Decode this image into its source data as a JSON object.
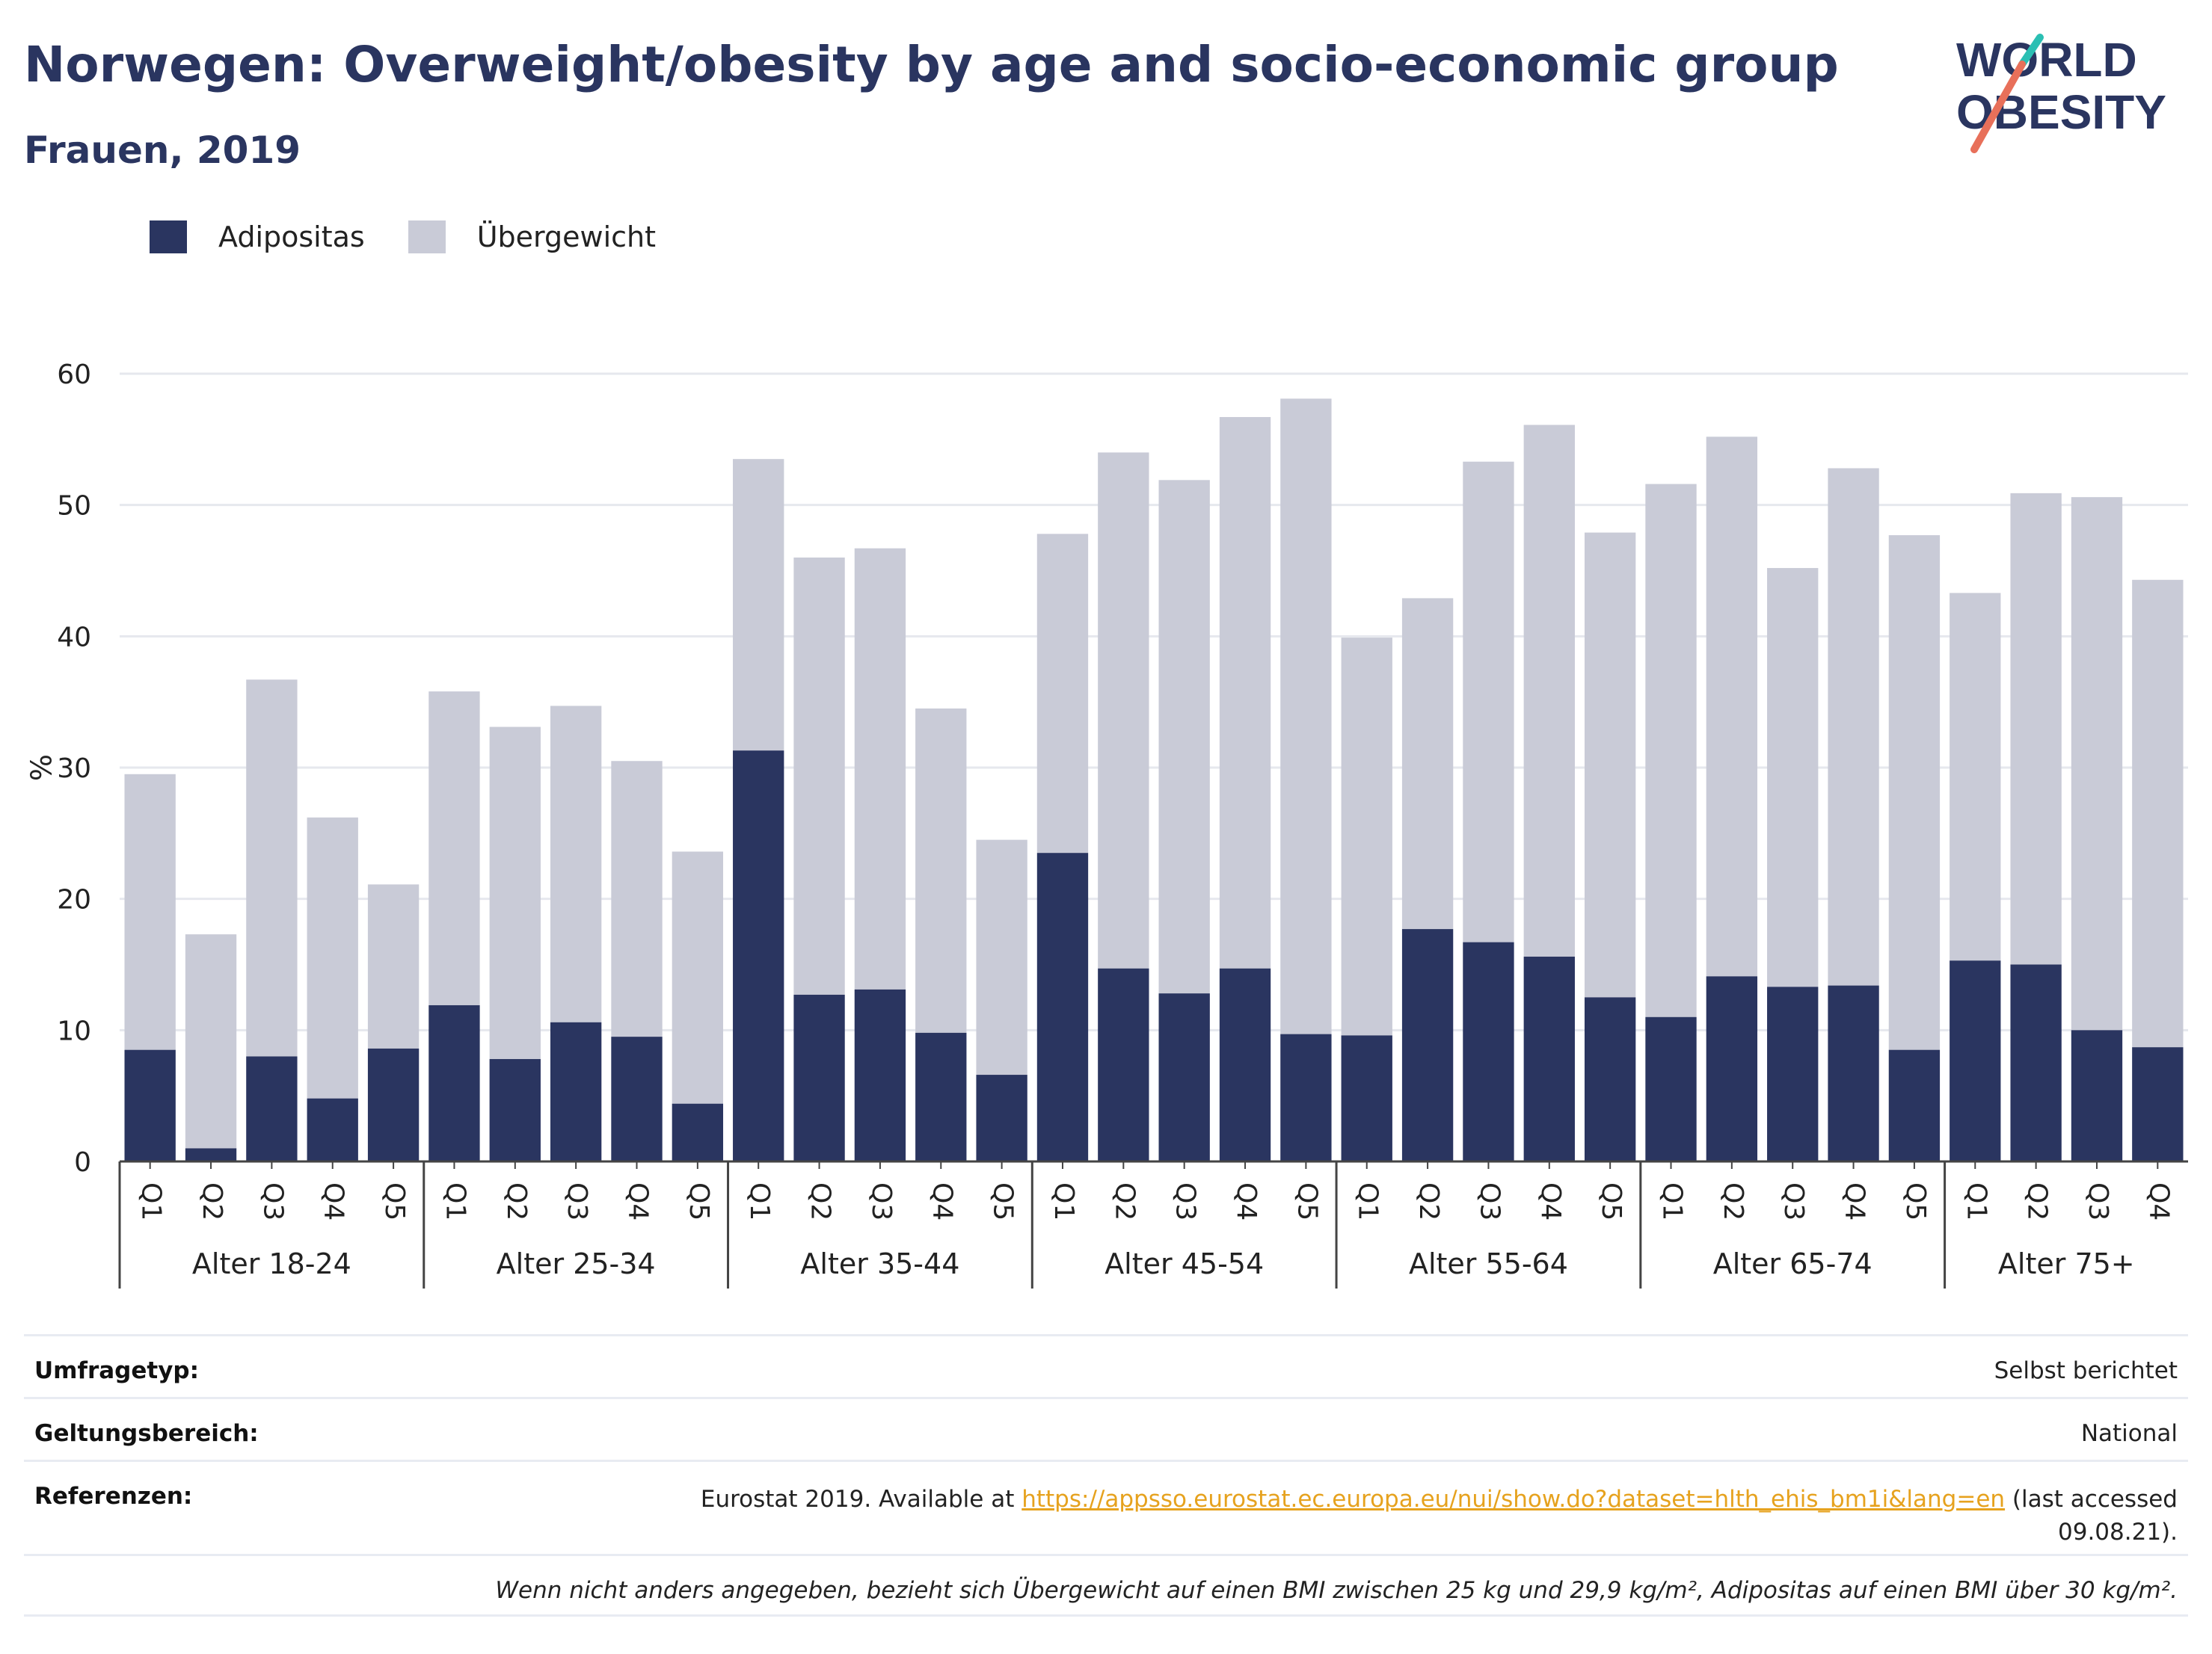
{
  "title": "Norwegen: Overweight/obesity by age and socio-economic group",
  "subtitle": "Frauen, 2019",
  "logo": {
    "line1": "WORLD",
    "line2": "OBESITY",
    "colors": {
      "text": "#2a3560",
      "teal": "#2bbfb3",
      "coral": "#e8705a"
    }
  },
  "legend": [
    {
      "label": "Adipositas",
      "color": "#2a3560"
    },
    {
      "label": "Übergewicht",
      "color": "#c9cbd7"
    }
  ],
  "chart_data": {
    "type": "bar",
    "stacked": true,
    "ylabel": "%",
    "ylim": [
      0,
      60
    ],
    "yticks": [
      0,
      10,
      20,
      30,
      40,
      50,
      60
    ],
    "grid": true,
    "legend_position": "top-left",
    "groups": [
      {
        "label": "Alter 18-24",
        "categories": [
          "Q1",
          "Q2",
          "Q3",
          "Q4",
          "Q5"
        ],
        "adipositas": [
          8.5,
          1.0,
          8.0,
          4.8,
          8.6
        ],
        "total": [
          29.5,
          17.3,
          36.7,
          26.2,
          21.1
        ]
      },
      {
        "label": "Alter 25-34",
        "categories": [
          "Q1",
          "Q2",
          "Q3",
          "Q4",
          "Q5"
        ],
        "adipositas": [
          11.9,
          7.8,
          10.6,
          9.5,
          4.4
        ],
        "total": [
          35.8,
          33.1,
          34.7,
          30.5,
          23.6
        ]
      },
      {
        "label": "Alter 35-44",
        "categories": [
          "Q1",
          "Q2",
          "Q3",
          "Q4",
          "Q5"
        ],
        "adipositas": [
          31.3,
          12.7,
          13.1,
          9.8,
          6.6
        ],
        "total": [
          53.5,
          46.0,
          46.7,
          34.5,
          24.5
        ]
      },
      {
        "label": "Alter 45-54",
        "categories": [
          "Q1",
          "Q2",
          "Q3",
          "Q4",
          "Q5"
        ],
        "adipositas": [
          23.5,
          14.7,
          12.8,
          14.7,
          9.7
        ],
        "total": [
          47.8,
          54.0,
          51.9,
          56.7,
          58.1
        ]
      },
      {
        "label": "Alter 55-64",
        "categories": [
          "Q1",
          "Q2",
          "Q3",
          "Q4",
          "Q5"
        ],
        "adipositas": [
          9.6,
          17.7,
          16.7,
          15.6,
          12.5
        ],
        "total": [
          39.9,
          42.9,
          53.3,
          56.1,
          47.9
        ]
      },
      {
        "label": "Alter 65-74",
        "categories": [
          "Q1",
          "Q2",
          "Q3",
          "Q4",
          "Q5"
        ],
        "adipositas": [
          11.0,
          14.1,
          13.3,
          13.4,
          8.5
        ],
        "total": [
          51.6,
          55.2,
          45.2,
          52.8,
          47.7
        ]
      },
      {
        "label": "Alter 75+",
        "categories": [
          "Q1",
          "Q2",
          "Q3",
          "Q4"
        ],
        "adipositas": [
          15.3,
          15.0,
          10.0,
          8.7
        ],
        "total": [
          43.3,
          50.9,
          50.6,
          44.3
        ]
      }
    ]
  },
  "info": {
    "survey_label": "Umfragetyp:",
    "survey_value": "Selbst berichtet",
    "scope_label": "Geltungsbereich:",
    "scope_value": "National",
    "ref_label": "Referenzen:",
    "ref_prefix": "Eurostat 2019. Available at ",
    "ref_link": "https://appsso.eurostat.ec.europa.eu/nui/show.do?dataset=hlth_ehis_bm1i&lang=en",
    "ref_suffix": " (last accessed",
    "ref_date": "09.08.21).",
    "note": "Wenn nicht anders angegeben, bezieht sich Übergewicht auf einen BMI zwischen 25 kg und 29,9 kg/m², Adipositas auf einen BMI über 30 kg/m²."
  }
}
